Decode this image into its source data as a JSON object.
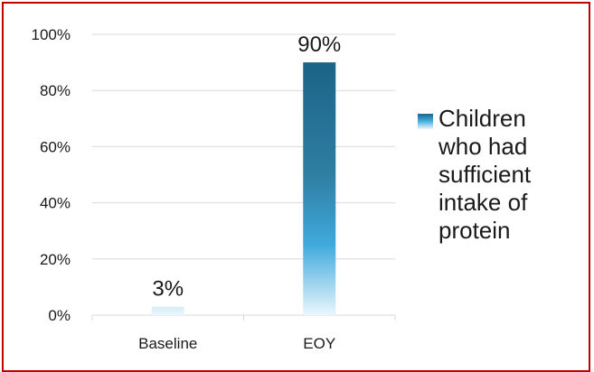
{
  "chart_data": {
    "type": "bar",
    "categories": [
      "Baseline",
      "EOY"
    ],
    "series": [
      {
        "name": "Children who had sufficient intake of protein",
        "values": [
          3,
          90
        ]
      }
    ],
    "data_labels": [
      "3%",
      "90%"
    ],
    "ylim": [
      0,
      100
    ],
    "yticks": [
      0,
      20,
      40,
      60,
      80,
      100
    ],
    "ytick_labels": [
      "0%",
      "20%",
      "40%",
      "60%",
      "80%",
      "100%"
    ],
    "grid": true,
    "legend_position": "right",
    "colors": {
      "bar_top": "#1b6387",
      "bar_mid": "#3fa9dc",
      "bar_bottom": "#eaf6fd",
      "grid": "#d9d9d9",
      "border": "#c00000"
    }
  }
}
